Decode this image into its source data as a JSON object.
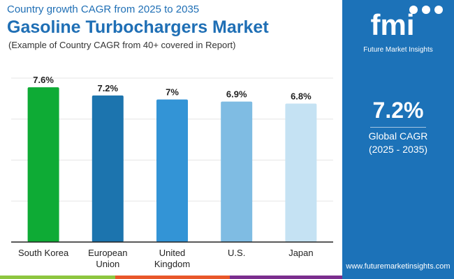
{
  "header": {
    "subtitle": "Country growth CAGR from 2025 to 2035",
    "title": "Gasoline Turbochargers Market",
    "note": "(Example of Country CAGR from 40+ covered in Report)"
  },
  "panel": {
    "logo_text": "fmi",
    "logo_caption": "Future Market Insights",
    "cagr_value": "7.2%",
    "cagr_label": "Global CAGR",
    "cagr_period": "(2025 - 2035)",
    "url": "www.futuremarketinsights.com",
    "bg": "#1c72b8"
  },
  "chart_data": {
    "type": "bar",
    "title": "Gasoline Turbochargers Market",
    "categories": [
      [
        "South Korea"
      ],
      [
        "European",
        "Union"
      ],
      [
        "United",
        "Kingdom"
      ],
      [
        "U.S."
      ],
      [
        "Japan"
      ]
    ],
    "values": [
      7.6,
      7.2,
      7.0,
      6.9,
      6.8
    ],
    "labels": [
      "7.6%",
      "7.2%",
      "7%",
      "6.9%",
      "6.8%"
    ],
    "colors": [
      "#0eab35",
      "#1c74ae",
      "#3394d6",
      "#7fbce3",
      "#c5e2f3"
    ],
    "ylim": [
      0,
      8.05
    ],
    "grid": true,
    "xlabel": "",
    "ylabel": ""
  }
}
